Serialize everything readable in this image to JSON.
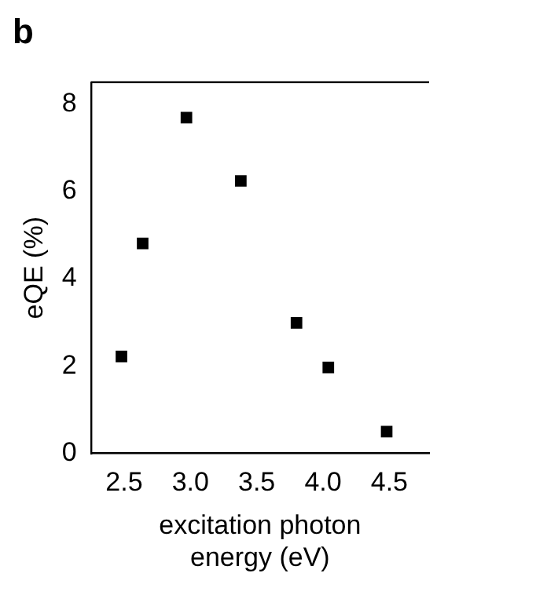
{
  "chart_data": {
    "type": "scatter",
    "title": "b",
    "xlabel": "excitation photon energy (eV)",
    "ylabel": "eQE (%)",
    "x": [
      2.48,
      2.64,
      2.97,
      3.38,
      3.8,
      4.04,
      4.48
    ],
    "series": [
      {
        "color": "#000000",
        "values": [
          2.22,
          4.81,
          7.69,
          6.24,
          2.99,
          1.97,
          0.5
        ]
      }
    ],
    "xlim": [
      2.25,
      4.8
    ],
    "xticks": [
      {
        "value": 2.5,
        "label": "2.5"
      },
      {
        "value": 3.0,
        "label": "3.0"
      },
      {
        "value": 3.5,
        "label": "3.5"
      },
      {
        "value": 4.0,
        "label": "4.0"
      },
      {
        "value": 4.5,
        "label": "4.5"
      }
    ],
    "ylim": [
      0,
      8.5
    ],
    "yticks": [
      0,
      2,
      4,
      6,
      8
    ],
    "marker": "square",
    "grid": false,
    "legend": false
  }
}
